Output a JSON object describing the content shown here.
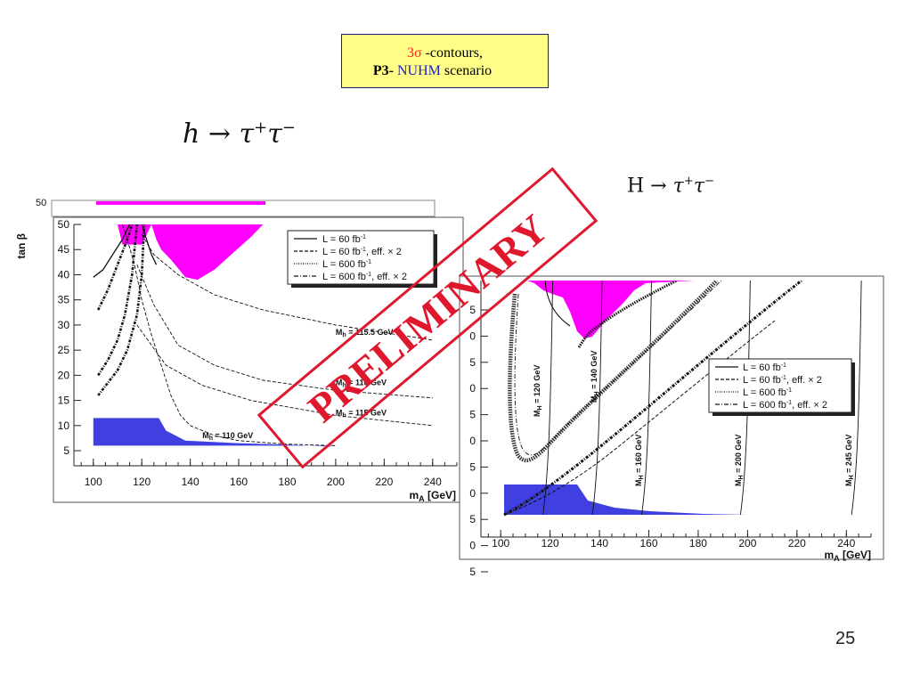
{
  "header": {
    "sigma_num": "3σ",
    "contours": " -contours,",
    "p3": "P3-",
    "nuhm": " NUHM",
    "scenario": " scenario"
  },
  "formulas": {
    "left_h": "h",
    "left_arrow_tau": " → τ",
    "left_plus": "+",
    "left_tau2": "τ",
    "left_minus": "−",
    "right_H": "H",
    "right_arrow_tau": " → τ",
    "right_plus": "+",
    "right_tau2": "τ",
    "right_minus": "−"
  },
  "stamp": "PRELIMINARY",
  "page_number": "25",
  "legend": {
    "l60": "L = 60 fb",
    "l60x2": "L = 60 fb",
    "l600": "L = 600 fb",
    "l600x2": "L = 600 fb",
    "sup": "-1",
    "eff": ", eff. × 2"
  },
  "chart_data": [
    {
      "type": "line",
      "plot": "left",
      "xlabel": "m_A [GeV]",
      "ylabel": "tan β",
      "xlim": [
        92,
        250
      ],
      "ylim": [
        2,
        50
      ],
      "xticks": [
        100,
        120,
        140,
        160,
        180,
        200,
        220,
        240
      ],
      "yticks": [
        5,
        10,
        15,
        20,
        25,
        30,
        35,
        40,
        45,
        50
      ],
      "legend_position": "top-right",
      "excluded_region_color": "#ff00ff",
      "low_region_color": "#4040e0",
      "curve_labels": [
        {
          "text": "M_h = 110 GeV",
          "x": 145,
          "y": 7.5
        },
        {
          "text": "M_h = 115 GeV",
          "x": 200,
          "y": 12
        },
        {
          "text": "M_h = 116 GeV",
          "x": 200,
          "y": 18
        },
        {
          "text": "M_h = 115.5 GeV",
          "x": 200,
          "y": 28
        }
      ],
      "magenta_region": [
        [
          110,
          50
        ],
        [
          112,
          46
        ],
        [
          120,
          46
        ],
        [
          124,
          50
        ],
        [
          126,
          47
        ],
        [
          128,
          45
        ],
        [
          132,
          43
        ],
        [
          138,
          39.5
        ],
        [
          143,
          39
        ],
        [
          150,
          41
        ],
        [
          158,
          44.5
        ],
        [
          165,
          47.5
        ],
        [
          170,
          50
        ]
      ],
      "blue_region": [
        [
          100,
          11.5
        ],
        [
          127,
          11.5
        ],
        [
          130,
          9
        ],
        [
          138,
          7
        ],
        [
          160,
          6.5
        ],
        [
          180,
          6.2
        ],
        [
          198,
          5.8
        ],
        [
          198,
          6
        ],
        [
          100,
          6
        ]
      ],
      "contours_60": [
        [
          [
            100,
            39.5
          ],
          [
            104,
            41
          ],
          [
            108,
            44
          ],
          [
            112,
            47
          ],
          [
            115,
            50
          ]
        ],
        [
          [
            120,
            50
          ],
          [
            122,
            47
          ],
          [
            124,
            44
          ],
          [
            126,
            42
          ]
        ]
      ],
      "contours_60x2": [
        [
          [
            112,
            50
          ],
          [
            114,
            47
          ],
          [
            117,
            42
          ],
          [
            120,
            35
          ],
          [
            124,
            28
          ],
          [
            128,
            22
          ],
          [
            132,
            16
          ],
          [
            136,
            12
          ],
          [
            140,
            10
          ],
          [
            150,
            8
          ],
          [
            160,
            7
          ],
          [
            180,
            6.3
          ],
          [
            200,
            6
          ]
        ],
        [
          [
            120,
            48
          ],
          [
            125,
            44
          ],
          [
            135,
            40
          ],
          [
            150,
            36
          ],
          [
            170,
            33
          ],
          [
            200,
            30
          ],
          [
            240,
            27
          ]
        ],
        [
          [
            118,
            42
          ],
          [
            125,
            34
          ],
          [
            135,
            26
          ],
          [
            150,
            22
          ],
          [
            170,
            19
          ],
          [
            200,
            17
          ],
          [
            240,
            15.5
          ]
        ],
        [
          [
            118,
            30
          ],
          [
            130,
            22
          ],
          [
            145,
            18
          ],
          [
            165,
            15
          ],
          [
            200,
            12
          ],
          [
            240,
            10
          ]
        ]
      ],
      "contours_600x2": [
        [
          [
            102,
            33
          ],
          [
            106,
            37
          ],
          [
            110,
            42
          ],
          [
            114,
            47
          ],
          [
            116,
            50
          ]
        ],
        [
          [
            102,
            20
          ],
          [
            106,
            23
          ],
          [
            110,
            27
          ],
          [
            113,
            32
          ],
          [
            116,
            40
          ],
          [
            118,
            50
          ]
        ],
        [
          [
            102,
            16
          ],
          [
            106,
            18.5
          ],
          [
            110,
            21
          ],
          [
            114,
            25
          ],
          [
            118,
            32
          ],
          [
            120,
            40
          ],
          [
            121,
            50
          ]
        ]
      ]
    },
    {
      "type": "line",
      "plot": "right",
      "xlabel": "m_A [GeV]",
      "xlim": [
        92,
        250
      ],
      "xticks": [
        100,
        120,
        140,
        160,
        180,
        200,
        220,
        240
      ],
      "yticks_right_side_partial": [
        5,
        0,
        5,
        0,
        5,
        0,
        5,
        0,
        5,
        0,
        5
      ],
      "legend_position": "right",
      "excluded_region_color": "#ff00ff",
      "low_region_color": "#4040e0",
      "curve_labels": [
        {
          "text": "M_H = 120 GeV"
        },
        {
          "text": "M_H = 140 GeV"
        },
        {
          "text": "M_H = 160 GeV"
        },
        {
          "text": "M_H = 200 GeV"
        },
        {
          "text": "M_H = 245 GeV"
        }
      ]
    }
  ]
}
